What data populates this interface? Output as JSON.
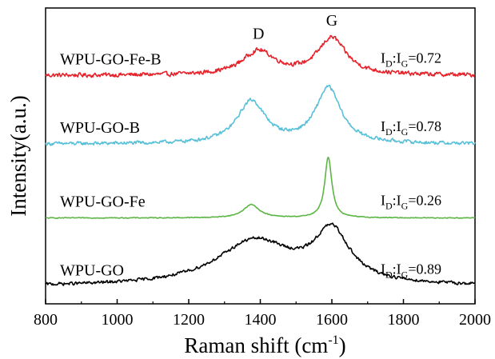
{
  "chart_data": {
    "type": "line",
    "xlabel": "Raman shift (cm",
    "xlabel_sup": "-1",
    "xlabel_end": ")",
    "ylabel": "Intensity(a.u.)",
    "xlim": [
      800,
      2000
    ],
    "x_ticks": [
      800,
      1000,
      1200,
      1400,
      1600,
      1800,
      2000
    ],
    "ylim": [
      0,
      100
    ],
    "grid": false,
    "legend": "none",
    "peak_annotations": [
      {
        "label": "D",
        "x": 1395
      },
      {
        "label": "G",
        "x": 1600
      }
    ],
    "series": [
      {
        "name": "WPU-GO-Fe-B",
        "color": "#e8222a",
        "baseline": 82,
        "noise": 1.1,
        "peaks": [
          {
            "center": 1395,
            "height": 9,
            "width": 110
          },
          {
            "center": 1600,
            "height": 14,
            "width": 95
          }
        ],
        "ratio": {
          "base": "I",
          "sub1": "D",
          "mid": ":I",
          "sub2": "G",
          "value": "=0.72"
        }
      },
      {
        "name": "WPU-GO-B",
        "color": "#58c0d8",
        "baseline": 56,
        "noise": 0.9,
        "peaks": [
          {
            "center": 1375,
            "height": 16,
            "width": 95
          },
          {
            "center": 1590,
            "height": 21,
            "width": 85
          }
        ],
        "ratio": {
          "base": "I",
          "sub1": "D",
          "mid": ":I",
          "sub2": "G",
          "value": "=0.78"
        }
      },
      {
        "name": "WPU-GO-Fe",
        "color": "#5cb545",
        "baseline": 28,
        "noise": 0.2,
        "peaks": [
          {
            "center": 1375,
            "height": 5,
            "width": 55
          },
          {
            "center": 1590,
            "height": 23,
            "width": 24
          }
        ],
        "ratio": {
          "base": "I",
          "sub1": "D",
          "mid": ":I",
          "sub2": "G",
          "value": "=0.26"
        }
      },
      {
        "name": "WPU-GO",
        "color": "#000000",
        "baseline": 2,
        "noise": 0.8,
        "peaks": [
          {
            "center": 1385,
            "height": 17,
            "width": 260
          },
          {
            "center": 1600,
            "height": 19,
            "width": 120
          }
        ],
        "ratio": {
          "base": "I",
          "sub1": "D",
          "mid": ":I",
          "sub2": "G",
          "value": "=0.89"
        }
      }
    ]
  }
}
